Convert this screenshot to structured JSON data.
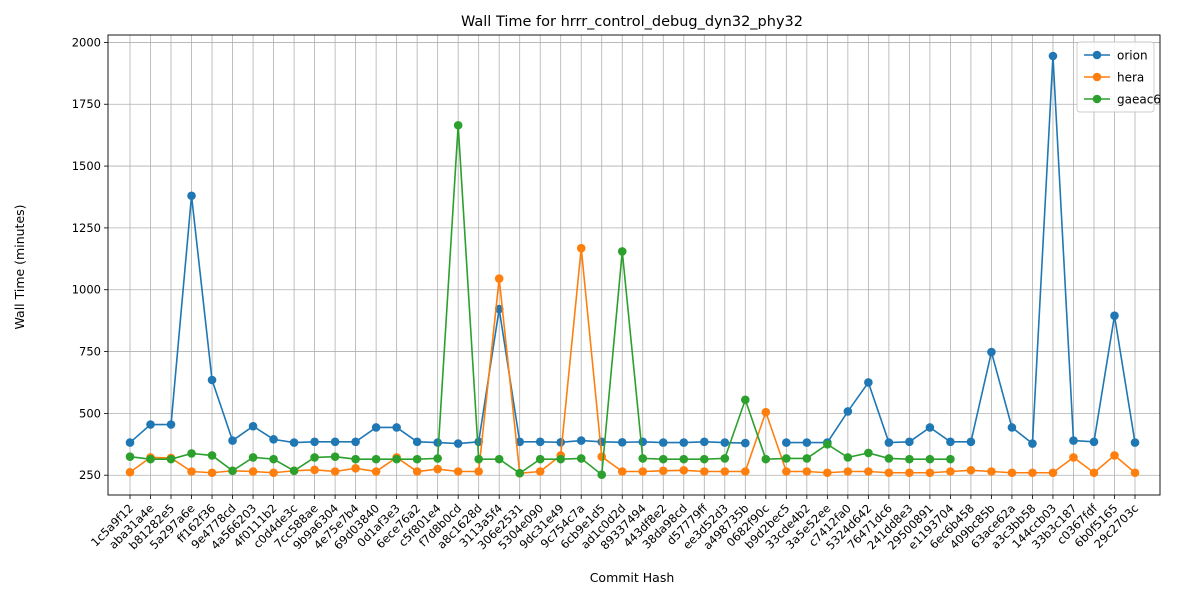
{
  "chart_data": {
    "type": "line",
    "title": "Wall Time for hrrr_control_debug_dyn32_phy32",
    "xlabel": "Commit Hash",
    "ylabel": "Wall Time (minutes)",
    "ylim": [
      170,
      2030
    ],
    "yticks": [
      250,
      500,
      750,
      1000,
      1250,
      1500,
      1750,
      2000
    ],
    "grid": true,
    "legend_position": "top-right",
    "categories": [
      "1c5a9f12",
      "aba31a4e",
      "b81282e5",
      "5a297a6e",
      "ff162f36",
      "9e4778cd",
      "4a566203",
      "4f0111b2",
      "c0d4de3c",
      "7cc588ae",
      "9b9a6304",
      "4e75e7b4",
      "69d03840",
      "0d1af3e3",
      "6ece76a2",
      "c5f801e4",
      "f7d8b0cd",
      "a8c1628d",
      "3113a5f4",
      "306e2531",
      "5304e090",
      "9dc31e49",
      "9c754c7a",
      "6cb9e1d5",
      "ad1c0d2d",
      "89337494",
      "443df8e2",
      "38da98cd",
      "d57779ff",
      "ee3d52d3",
      "a498735b",
      "0682f90c",
      "b9d2bec5",
      "33cde4b2",
      "3a5e52ee",
      "c7412fa0",
      "5324d642",
      "76471dc6",
      "241dd8e3",
      "29500891",
      "e1193704",
      "6ec6b458",
      "409bc85b",
      "63ace62a",
      "a3c3bb58",
      "144ccb03",
      "33b3c187",
      "c0367fdf",
      "6b0f5165",
      "29c2703c"
    ],
    "series": [
      {
        "name": "orion",
        "color": "#1f77b4",
        "values": [
          382,
          455,
          455,
          1380,
          635,
          390,
          448,
          395,
          382,
          385,
          385,
          385,
          443,
          443,
          385,
          382,
          378,
          385,
          922,
          385,
          385,
          383,
          390,
          385,
          383,
          385,
          382,
          382,
          385,
          382,
          380,
          null,
          382,
          382,
          382,
          508,
          625,
          382,
          385,
          443,
          385,
          385,
          748,
          443,
          378,
          1945,
          390,
          385,
          895,
          382
        ]
      },
      {
        "name": "hera",
        "color": "#ff7f0e",
        "values": [
          262,
          322,
          320,
          265,
          260,
          268,
          265,
          260,
          268,
          272,
          265,
          278,
          265,
          322,
          265,
          275,
          265,
          265,
          1045,
          258,
          265,
          330,
          1168,
          325,
          265,
          265,
          268,
          270,
          265,
          265,
          265,
          505,
          265,
          265,
          260,
          265,
          265,
          260,
          260,
          260,
          265,
          270,
          265,
          260,
          260,
          260,
          322,
          260,
          330,
          260
        ]
      },
      {
        "name": "gaeac6",
        "color": "#2ca02c",
        "values": [
          325,
          315,
          315,
          338,
          330,
          268,
          322,
          315,
          268,
          322,
          325,
          315,
          315,
          315,
          315,
          318,
          1665,
          315,
          315,
          258,
          315,
          315,
          318,
          252,
          1155,
          318,
          315,
          315,
          315,
          318,
          555,
          315,
          318,
          318,
          375,
          322,
          340,
          318,
          315,
          315,
          315,
          null,
          null,
          null,
          null,
          null,
          null,
          null,
          null,
          null
        ]
      }
    ]
  }
}
